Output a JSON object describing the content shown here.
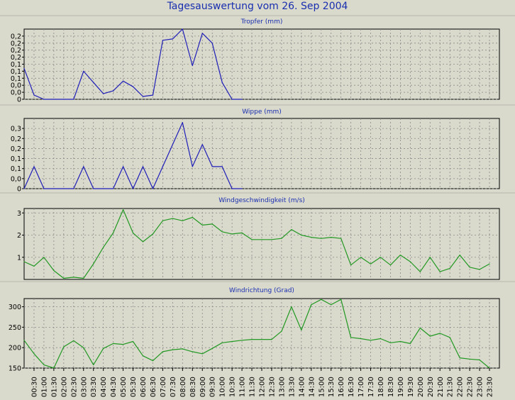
{
  "header": {
    "title": "Tagesauswertung vom 26. Sep 2004"
  },
  "colors": {
    "blue_series": "#1f1fb8",
    "green_series": "#229922",
    "background": "#d9d9cc",
    "grid": "#8a8a8a"
  },
  "chart_data": [
    {
      "type": "line",
      "title": "Tropfer (mm)",
      "color": "#1f1fb8",
      "ylim": [
        0,
        0.25
      ],
      "yticks": [
        0,
        0.025,
        0.05,
        0.075,
        0.1,
        0.125,
        0.15,
        0.175,
        0.2,
        0.225
      ],
      "ytick_labels": [
        "0",
        "0,0",
        "0,0",
        "0,1",
        "0,1",
        "0,1",
        "0,2",
        "0,2",
        "0,2",
        "0,2"
      ],
      "grid": true,
      "x": [
        0,
        0.5,
        1,
        1.5,
        2,
        2.5,
        3,
        3.5,
        4,
        4.5,
        5,
        5.5,
        6,
        6.5,
        7,
        7.5,
        8,
        8.5,
        9,
        9.5,
        10,
        10.5,
        11
      ],
      "values": [
        0.11,
        0.015,
        0,
        0,
        0,
        0,
        0.1,
        0.06,
        0.02,
        0.03,
        0.065,
        0.045,
        0.01,
        0.015,
        0.21,
        0.215,
        0.25,
        0.12,
        0.235,
        0.2,
        0.06,
        0,
        0
      ]
    },
    {
      "type": "line",
      "title": "Wippe (mm)",
      "color": "#1f1fb8",
      "ylim": [
        0,
        0.35
      ],
      "yticks": [
        0,
        0.05,
        0.1,
        0.15,
        0.2,
        0.25,
        0.3
      ],
      "ytick_labels": [
        "0",
        "0,0",
        "0,1",
        "0,1",
        "0,2",
        "0,2",
        "0,3"
      ],
      "grid": true,
      "x": [
        0,
        0.5,
        1,
        1.5,
        2,
        2.5,
        3,
        3.5,
        4,
        4.5,
        5,
        5.5,
        6,
        6.5,
        7,
        7.5,
        8,
        8.5,
        9,
        9.5,
        10,
        10.5,
        11
      ],
      "values": [
        0,
        0.11,
        0,
        0,
        0,
        0,
        0.11,
        0,
        0,
        0,
        0.11,
        0,
        0.11,
        0,
        0.11,
        0.22,
        0.33,
        0.11,
        0.22,
        0.11,
        0.11,
        0,
        0
      ]
    },
    {
      "type": "line",
      "title": "Windgeschwindigkeit (m/s)",
      "color": "#229922",
      "ylim": [
        0,
        3.2
      ],
      "yticks": [
        1,
        2,
        3
      ],
      "ytick_labels": [
        "1",
        "2",
        "3"
      ],
      "grid": true,
      "x": [
        0,
        0.5,
        1,
        1.5,
        2,
        2.5,
        3,
        3.5,
        4,
        4.5,
        5,
        5.5,
        6,
        6.5,
        7,
        7.5,
        8,
        8.5,
        9,
        9.5,
        10,
        10.5,
        11,
        11.5,
        12,
        12.5,
        13,
        13.5,
        14,
        14.5,
        15,
        15.5,
        16,
        16.5,
        17,
        17.5,
        18,
        18.5,
        19,
        19.5,
        20,
        20.5,
        21,
        21.5,
        22,
        22.5,
        23,
        23.5
      ],
      "values": [
        0.8,
        0.6,
        1.0,
        0.4,
        0.05,
        0.1,
        0.05,
        0.7,
        1.45,
        2.1,
        3.15,
        2.1,
        1.7,
        2.05,
        2.65,
        2.75,
        2.65,
        2.8,
        2.45,
        2.5,
        2.15,
        2.05,
        2.1,
        1.8,
        1.8,
        1.8,
        1.85,
        2.25,
        2.0,
        1.9,
        1.85,
        1.9,
        1.85,
        0.65,
        1.0,
        0.7,
        1.0,
        0.65,
        1.1,
        0.8,
        0.35,
        1.0,
        0.35,
        0.5,
        1.1,
        0.55,
        0.45,
        0.7
      ]
    },
    {
      "type": "line",
      "title": "Windrichtung (Grad)",
      "color": "#229922",
      "ylim": [
        150,
        320
      ],
      "yticks": [
        150,
        200,
        250,
        300
      ],
      "ytick_labels": [
        "150",
        "200",
        "250",
        "300"
      ],
      "grid": true,
      "x": [
        0,
        0.5,
        1,
        1.5,
        2,
        2.5,
        3,
        3.5,
        4,
        4.5,
        5,
        5.5,
        6,
        6.5,
        7,
        7.5,
        8,
        8.5,
        9,
        9.5,
        10,
        10.5,
        11,
        11.5,
        12,
        12.5,
        13,
        13.5,
        14,
        14.5,
        15,
        15.5,
        16,
        16.5,
        17,
        17.5,
        18,
        18.5,
        19,
        19.5,
        20,
        20.5,
        21,
        21.5,
        22,
        22.5,
        23,
        23.5
      ],
      "values": [
        218,
        185,
        158,
        150,
        202,
        217,
        200,
        158,
        198,
        210,
        208,
        215,
        180,
        168,
        190,
        195,
        197,
        190,
        185,
        198,
        212,
        215,
        218,
        220,
        220,
        220,
        240,
        300,
        243,
        305,
        318,
        305,
        318,
        225,
        222,
        218,
        222,
        212,
        215,
        210,
        248,
        228,
        235,
        225,
        175,
        172,
        170,
        150
      ]
    }
  ],
  "x_axis": {
    "tick_labels": [
      "00:30",
      "01:00",
      "01:30",
      "02:00",
      "02:30",
      "03:00",
      "03:30",
      "04:00",
      "04:30",
      "05:00",
      "05:30",
      "06:00",
      "06:30",
      "07:00",
      "07:30",
      "08:00",
      "08:30",
      "09:00",
      "09:30",
      "10:00",
      "10:30",
      "11:00",
      "11:30",
      "12:00",
      "12:30",
      "13:00",
      "13:30",
      "14:00",
      "14:30",
      "15:00",
      "15:30",
      "16:00",
      "16:30",
      "17:00",
      "17:30",
      "18:00",
      "18:30",
      "19:00",
      "19:30",
      "20:00",
      "20:30",
      "21:00",
      "21:30",
      "22:00",
      "22:30",
      "23:00",
      "23:30"
    ]
  }
}
